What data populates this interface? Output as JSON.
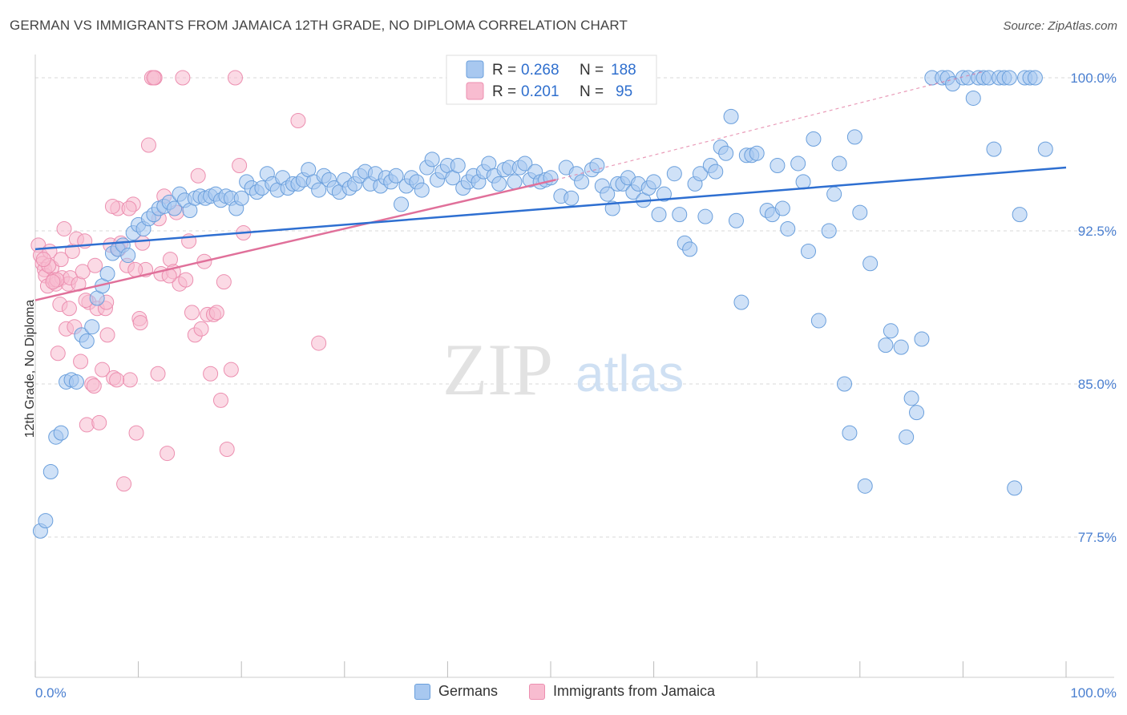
{
  "header": {
    "title": "GERMAN VS IMMIGRANTS FROM JAMAICA 12TH GRADE, NO DIPLOMA CORRELATION CHART",
    "source": "Source: ZipAtlas.com"
  },
  "watermark": {
    "zip": "ZIP",
    "atlas": "atlas"
  },
  "legend_box": {
    "rows": [
      {
        "r_label": "R =",
        "r_value": "0.268",
        "n_label": "N =",
        "n_value": "188"
      },
      {
        "r_label": "R =",
        "r_value": "0.201",
        "n_label": "N =",
        "n_value": "95"
      }
    ]
  },
  "bottom_legend": {
    "items": [
      "Germans",
      "Immigrants from Jamaica"
    ]
  },
  "colors": {
    "blue_fill": "#a8c8f0",
    "blue_stroke": "#6a9fdc",
    "blue_line": "#2e6fd1",
    "pink_fill": "#f8bcd0",
    "pink_stroke": "#ec8fb0",
    "pink_line": "#e0709a",
    "grid": "#d8d8d8",
    "tick_text": "#4a7fd0"
  },
  "chart_data": {
    "type": "scatter",
    "title": "GERMAN VS IMMIGRANTS FROM JAMAICA 12TH GRADE, NO DIPLOMA CORRELATION CHART",
    "xlabel": "",
    "ylabel": "12th Grade, No Diploma",
    "xlim": [
      0,
      100
    ],
    "ylim": [
      70.5,
      101
    ],
    "x_tick_labels": [
      "0.0%",
      "100.0%"
    ],
    "y_ticks": [
      77.5,
      85.0,
      92.5,
      100.0
    ],
    "y_tick_labels": [
      "77.5%",
      "85.0%",
      "92.5%",
      "100.0%"
    ],
    "grid": true,
    "legend_position": "top-center",
    "series": [
      {
        "name": "Germans",
        "color": "#a8c8f0",
        "trend": {
          "x": [
            0,
            100
          ],
          "y": [
            91.6,
            95.6
          ]
        },
        "points": [
          [
            0.5,
            77.8
          ],
          [
            1,
            78.3
          ],
          [
            1.5,
            80.7
          ],
          [
            2,
            82.4
          ],
          [
            2.5,
            82.6
          ],
          [
            3,
            85.1
          ],
          [
            3.5,
            85.2
          ],
          [
            4,
            85.1
          ],
          [
            4.5,
            87.4
          ],
          [
            5,
            87.1
          ],
          [
            5.5,
            87.8
          ],
          [
            6,
            89.2
          ],
          [
            6.5,
            89.8
          ],
          [
            7,
            90.4
          ],
          [
            7.5,
            91.4
          ],
          [
            8,
            91.6
          ],
          [
            8.5,
            91.8
          ],
          [
            9,
            91.3
          ],
          [
            9.5,
            92.4
          ],
          [
            10,
            92.8
          ],
          [
            10.5,
            92.6
          ],
          [
            11,
            93.1
          ],
          [
            11.5,
            93.3
          ],
          [
            12,
            93.6
          ],
          [
            12.5,
            93.7
          ],
          [
            13,
            93.9
          ],
          [
            13.5,
            93.6
          ],
          [
            14,
            94.3
          ],
          [
            14.5,
            94.0
          ],
          [
            15,
            93.5
          ],
          [
            15.5,
            94.1
          ],
          [
            16,
            94.2
          ],
          [
            16.5,
            94.1
          ],
          [
            17,
            94.2
          ],
          [
            17.5,
            94.3
          ],
          [
            18,
            94.0
          ],
          [
            18.5,
            94.2
          ],
          [
            19,
            94.1
          ],
          [
            19.5,
            93.6
          ],
          [
            20,
            94.1
          ],
          [
            20.5,
            94.9
          ],
          [
            21,
            94.6
          ],
          [
            21.5,
            94.4
          ],
          [
            22,
            94.6
          ],
          [
            22.5,
            95.3
          ],
          [
            23,
            94.8
          ],
          [
            23.5,
            94.5
          ],
          [
            24,
            95.1
          ],
          [
            24.5,
            94.6
          ],
          [
            25,
            94.8
          ],
          [
            25.5,
            94.8
          ],
          [
            26,
            95.0
          ],
          [
            26.5,
            95.5
          ],
          [
            27,
            94.9
          ],
          [
            27.5,
            94.5
          ],
          [
            28,
            95.2
          ],
          [
            28.5,
            95.0
          ],
          [
            29,
            94.6
          ],
          [
            29.5,
            94.4
          ],
          [
            30,
            95.0
          ],
          [
            30.5,
            94.6
          ],
          [
            31,
            94.8
          ],
          [
            31.5,
            95.2
          ],
          [
            32,
            95.4
          ],
          [
            32.5,
            94.8
          ],
          [
            33,
            95.3
          ],
          [
            33.5,
            94.7
          ],
          [
            34,
            95.1
          ],
          [
            34.5,
            94.9
          ],
          [
            35,
            95.2
          ],
          [
            35.5,
            93.8
          ],
          [
            36,
            94.7
          ],
          [
            36.5,
            95.1
          ],
          [
            37,
            94.9
          ],
          [
            37.5,
            94.5
          ],
          [
            38,
            95.6
          ],
          [
            38.5,
            96.0
          ],
          [
            39,
            95.0
          ],
          [
            39.5,
            95.4
          ],
          [
            40,
            95.7
          ],
          [
            40.5,
            95.1
          ],
          [
            41,
            95.7
          ],
          [
            41.5,
            94.6
          ],
          [
            42,
            94.9
          ],
          [
            42.5,
            95.2
          ],
          [
            43,
            94.9
          ],
          [
            43.5,
            95.4
          ],
          [
            44,
            95.8
          ],
          [
            44.5,
            95.2
          ],
          [
            45,
            94.8
          ],
          [
            45.5,
            95.5
          ],
          [
            46,
            95.6
          ],
          [
            46.5,
            94.9
          ],
          [
            47,
            95.6
          ],
          [
            47.5,
            95.8
          ],
          [
            48,
            95.0
          ],
          [
            48.5,
            95.4
          ],
          [
            49,
            94.9
          ],
          [
            49.5,
            95.0
          ],
          [
            50,
            95.1
          ],
          [
            51,
            94.2
          ],
          [
            51.5,
            95.6
          ],
          [
            52,
            94.1
          ],
          [
            52.5,
            95.3
          ],
          [
            53,
            94.9
          ],
          [
            54,
            95.5
          ],
          [
            54.5,
            95.7
          ],
          [
            55,
            94.7
          ],
          [
            55.5,
            94.3
          ],
          [
            56,
            93.6
          ],
          [
            56.5,
            94.8
          ],
          [
            57,
            94.8
          ],
          [
            57.5,
            95.1
          ],
          [
            58,
            94.4
          ],
          [
            58.5,
            94.8
          ],
          [
            59,
            94.0
          ],
          [
            59.5,
            94.6
          ],
          [
            60,
            94.9
          ],
          [
            60.5,
            93.3
          ],
          [
            61,
            94.3
          ],
          [
            62,
            95.3
          ],
          [
            62.5,
            93.3
          ],
          [
            63,
            91.9
          ],
          [
            63.5,
            91.6
          ],
          [
            64,
            94.8
          ],
          [
            64.5,
            95.3
          ],
          [
            65,
            93.2
          ],
          [
            65.5,
            95.7
          ],
          [
            66,
            95.4
          ],
          [
            66.5,
            96.6
          ],
          [
            67,
            96.3
          ],
          [
            67.5,
            98.1
          ],
          [
            68,
            93.0
          ],
          [
            68.5,
            89.0
          ],
          [
            69,
            96.2
          ],
          [
            69.5,
            96.2
          ],
          [
            70,
            96.3
          ],
          [
            71,
            93.5
          ],
          [
            71.5,
            93.3
          ],
          [
            72,
            95.7
          ],
          [
            72.5,
            93.6
          ],
          [
            73,
            92.6
          ],
          [
            74,
            95.8
          ],
          [
            74.5,
            94.9
          ],
          [
            75,
            91.5
          ],
          [
            75.5,
            97.0
          ],
          [
            76,
            88.1
          ],
          [
            77,
            92.5
          ],
          [
            77.5,
            94.3
          ],
          [
            78,
            95.8
          ],
          [
            78.5,
            85.0
          ],
          [
            79,
            82.6
          ],
          [
            79.5,
            97.1
          ],
          [
            80,
            93.4
          ],
          [
            80.5,
            80.0
          ],
          [
            81,
            90.9
          ],
          [
            82.5,
            86.9
          ],
          [
            83,
            87.6
          ],
          [
            84,
            86.8
          ],
          [
            84.5,
            82.4
          ],
          [
            85,
            84.3
          ],
          [
            85.5,
            83.6
          ],
          [
            86,
            87.2
          ],
          [
            87,
            100.0
          ],
          [
            88,
            100.0
          ],
          [
            88.5,
            100.0
          ],
          [
            89,
            99.7
          ],
          [
            90,
            100.0
          ],
          [
            90.5,
            100.0
          ],
          [
            91,
            99.0
          ],
          [
            91.5,
            100.0
          ],
          [
            92,
            100.0
          ],
          [
            92.5,
            100.0
          ],
          [
            93,
            96.5
          ],
          [
            93.5,
            100.0
          ],
          [
            94,
            100.0
          ],
          [
            94.5,
            100.0
          ],
          [
            95,
            79.9
          ],
          [
            95.5,
            93.3
          ],
          [
            96,
            100.0
          ],
          [
            96.5,
            100.0
          ],
          [
            97,
            100.0
          ],
          [
            98,
            96.5
          ]
        ]
      },
      {
        "name": "Immigrants from Jamaica",
        "color": "#f8bcd0",
        "trend": {
          "x": [
            0,
            50.5
          ],
          "y": [
            89.1,
            95.0
          ]
        },
        "trend_extension": {
          "x": [
            50.5,
            92
          ],
          "y": [
            95.0,
            100.3
          ]
        },
        "points": [
          [
            0.3,
            91.8
          ],
          [
            0.5,
            91.3
          ],
          [
            0.7,
            90.9
          ],
          [
            0.9,
            90.6
          ],
          [
            1,
            90.3
          ],
          [
            1.2,
            89.8
          ],
          [
            1.4,
            91.5
          ],
          [
            1.6,
            90.7
          ],
          [
            1.8,
            90.1
          ],
          [
            2,
            89.9
          ],
          [
            2.2,
            86.5
          ],
          [
            2.4,
            88.9
          ],
          [
            2.6,
            90.2
          ],
          [
            2.8,
            92.6
          ],
          [
            3,
            87.7
          ],
          [
            3.2,
            89.9
          ],
          [
            3.4,
            90.2
          ],
          [
            3.6,
            91.5
          ],
          [
            3.8,
            87.8
          ],
          [
            4,
            92.1
          ],
          [
            4.2,
            89.9
          ],
          [
            4.4,
            86.1
          ],
          [
            4.6,
            90.5
          ],
          [
            4.8,
            92.0
          ],
          [
            5,
            83.0
          ],
          [
            5.2,
            89.0
          ],
          [
            5.5,
            85.0
          ],
          [
            5.8,
            90.8
          ],
          [
            6,
            88.7
          ],
          [
            6.2,
            83.1
          ],
          [
            6.5,
            85.7
          ],
          [
            6.8,
            88.7
          ],
          [
            7,
            87.4
          ],
          [
            7.3,
            91.8
          ],
          [
            7.6,
            85.3
          ],
          [
            8,
            93.6
          ],
          [
            8.3,
            91.9
          ],
          [
            8.6,
            80.1
          ],
          [
            8.9,
            90.8
          ],
          [
            9.2,
            85.2
          ],
          [
            9.5,
            93.8
          ],
          [
            9.8,
            82.6
          ],
          [
            10.1,
            88.2
          ],
          [
            10.4,
            91.9
          ],
          [
            10.7,
            90.6
          ],
          [
            11,
            96.7
          ],
          [
            11.3,
            100.0
          ],
          [
            11.6,
            100.0
          ],
          [
            11.9,
            85.5
          ],
          [
            12.2,
            90.4
          ],
          [
            12.5,
            94.2
          ],
          [
            12.8,
            81.6
          ],
          [
            13.1,
            91.1
          ],
          [
            13.4,
            90.5
          ],
          [
            13.7,
            93.4
          ],
          [
            14,
            89.9
          ],
          [
            14.3,
            100.0
          ],
          [
            14.6,
            90.1
          ],
          [
            14.9,
            92.0
          ],
          [
            15.2,
            88.5
          ],
          [
            15.5,
            87.4
          ],
          [
            15.8,
            95.2
          ],
          [
            16.1,
            87.7
          ],
          [
            16.4,
            91.0
          ],
          [
            16.7,
            88.4
          ],
          [
            17,
            85.5
          ],
          [
            17.3,
            88.4
          ],
          [
            17.6,
            88.5
          ],
          [
            18,
            84.2
          ],
          [
            18.3,
            90.0
          ],
          [
            18.6,
            81.8
          ],
          [
            19,
            85.7
          ],
          [
            19.4,
            100.0
          ],
          [
            19.8,
            95.7
          ],
          [
            20.2,
            92.4
          ],
          [
            25.5,
            97.9
          ],
          [
            27.5,
            87.0
          ],
          [
            7.5,
            93.7
          ],
          [
            1.3,
            90.8
          ],
          [
            2.1,
            90.1
          ],
          [
            3.3,
            88.7
          ],
          [
            6.9,
            89.0
          ],
          [
            8.1,
            91.6
          ],
          [
            9.1,
            93.6
          ],
          [
            10.2,
            88.0
          ],
          [
            12.0,
            93.1
          ],
          [
            13.0,
            90.3
          ],
          [
            4.9,
            89.1
          ],
          [
            5.7,
            84.9
          ],
          [
            11.5,
            100.0
          ],
          [
            0.8,
            91.1
          ],
          [
            1.7,
            90.0
          ],
          [
            2.5,
            91.1
          ],
          [
            7.9,
            85.2
          ],
          [
            9.7,
            90.6
          ]
        ]
      }
    ]
  }
}
